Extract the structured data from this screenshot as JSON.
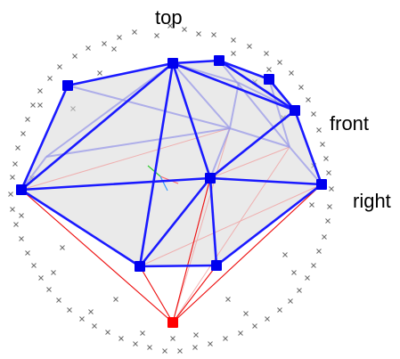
{
  "labels": {
    "top": "top",
    "front": "front",
    "right": "right"
  },
  "colors": {
    "background": "#ffffff",
    "hull_fill": "#d9d9d9",
    "front_edges": "#1a1aff",
    "back_edges": "#9a9ae8",
    "vertex": "#0000ee",
    "apex": "#ff0000",
    "apex_edges": "#ee1111",
    "projection_rays": "#f0a0a0",
    "sample_points": "#707070",
    "axis_x": "#ff6666",
    "axis_y": "#33cc33",
    "axis_z": "#3399ff"
  },
  "marks": {
    "vertex_marker": "square",
    "apex_marker": "square",
    "sample_marker": "cross"
  }
}
